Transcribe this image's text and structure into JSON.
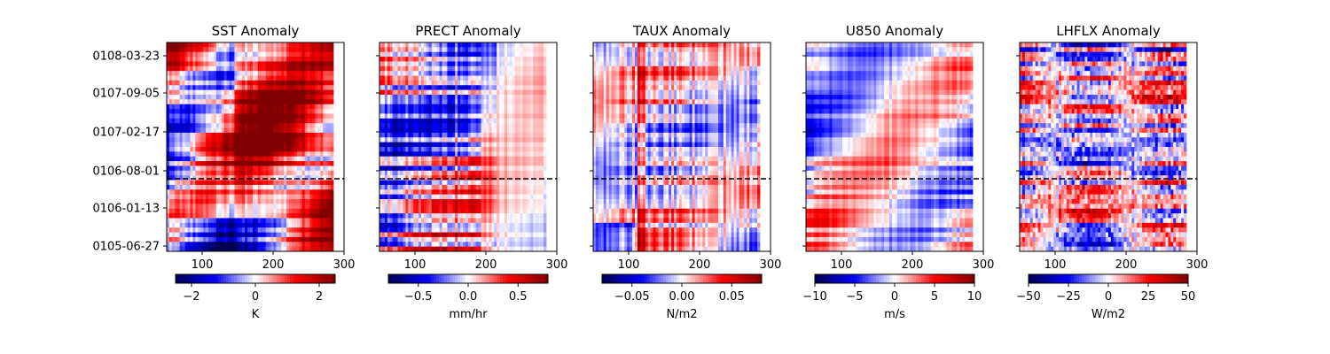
{
  "chart_data": [
    {
      "type": "heatmap",
      "title": "SST Anomaly",
      "x_ticks": [
        100,
        200,
        300
      ],
      "xlim": [
        50,
        300
      ],
      "data_xlim": [
        50,
        285
      ],
      "y_tick_labels": [
        "0108-03-23",
        "0107-09-05",
        "0107-02-17",
        "0106-08-01",
        "0106-01-13",
        "0105-06-27"
      ],
      "colorbar": {
        "label": "K",
        "ticks": [
          -2,
          0,
          2
        ],
        "range": [
          -2.5,
          2.5
        ]
      },
      "colormap": "seismic",
      "dashed_line_at": "between 0106-08-01 and 0106-01-13"
    },
    {
      "type": "heatmap",
      "title": "PRECT Anomaly",
      "x_ticks": [
        100,
        200,
        300
      ],
      "xlim": [
        50,
        300
      ],
      "data_xlim": [
        50,
        285
      ],
      "colorbar": {
        "label": "mm/hr",
        "ticks": [
          -0.5,
          0.0,
          0.5
        ],
        "tick_labels": [
          "−0.5",
          "0.0",
          "0.5"
        ],
        "range": [
          -0.8,
          0.8
        ]
      },
      "colormap": "seismic"
    },
    {
      "type": "heatmap",
      "title": "TAUX Anomaly",
      "x_ticks": [
        100,
        200,
        300
      ],
      "xlim": [
        50,
        300
      ],
      "data_xlim": [
        50,
        285
      ],
      "colorbar": {
        "label": "N/m2",
        "ticks": [
          -0.05,
          0.0,
          0.05
        ],
        "tick_labels": [
          "−0.05",
          "0.00",
          "0.05"
        ],
        "range": [
          -0.08,
          0.08
        ]
      },
      "colormap": "seismic"
    },
    {
      "type": "heatmap",
      "title": "U850 Anomaly",
      "x_ticks": [
        100,
        200,
        300
      ],
      "xlim": [
        50,
        300
      ],
      "data_xlim": [
        50,
        285
      ],
      "colorbar": {
        "label": "m/s",
        "ticks": [
          -10,
          -5,
          0,
          5,
          10
        ],
        "tick_labels": [
          "−10",
          "−5",
          "0",
          "5",
          "10"
        ],
        "range": [
          -10,
          10
        ]
      },
      "colormap": "seismic"
    },
    {
      "type": "heatmap",
      "title": "LHFLX Anomaly",
      "x_ticks": [
        100,
        200,
        300
      ],
      "xlim": [
        50,
        300
      ],
      "data_xlim": [
        50,
        285
      ],
      "colorbar": {
        "label": "W/m2",
        "ticks": [
          -50,
          -25,
          0,
          25,
          50
        ],
        "tick_labels": [
          "−50",
          "−25",
          "0",
          "25",
          "50"
        ],
        "range": [
          -50,
          50
        ]
      },
      "colormap": "seismic"
    }
  ]
}
